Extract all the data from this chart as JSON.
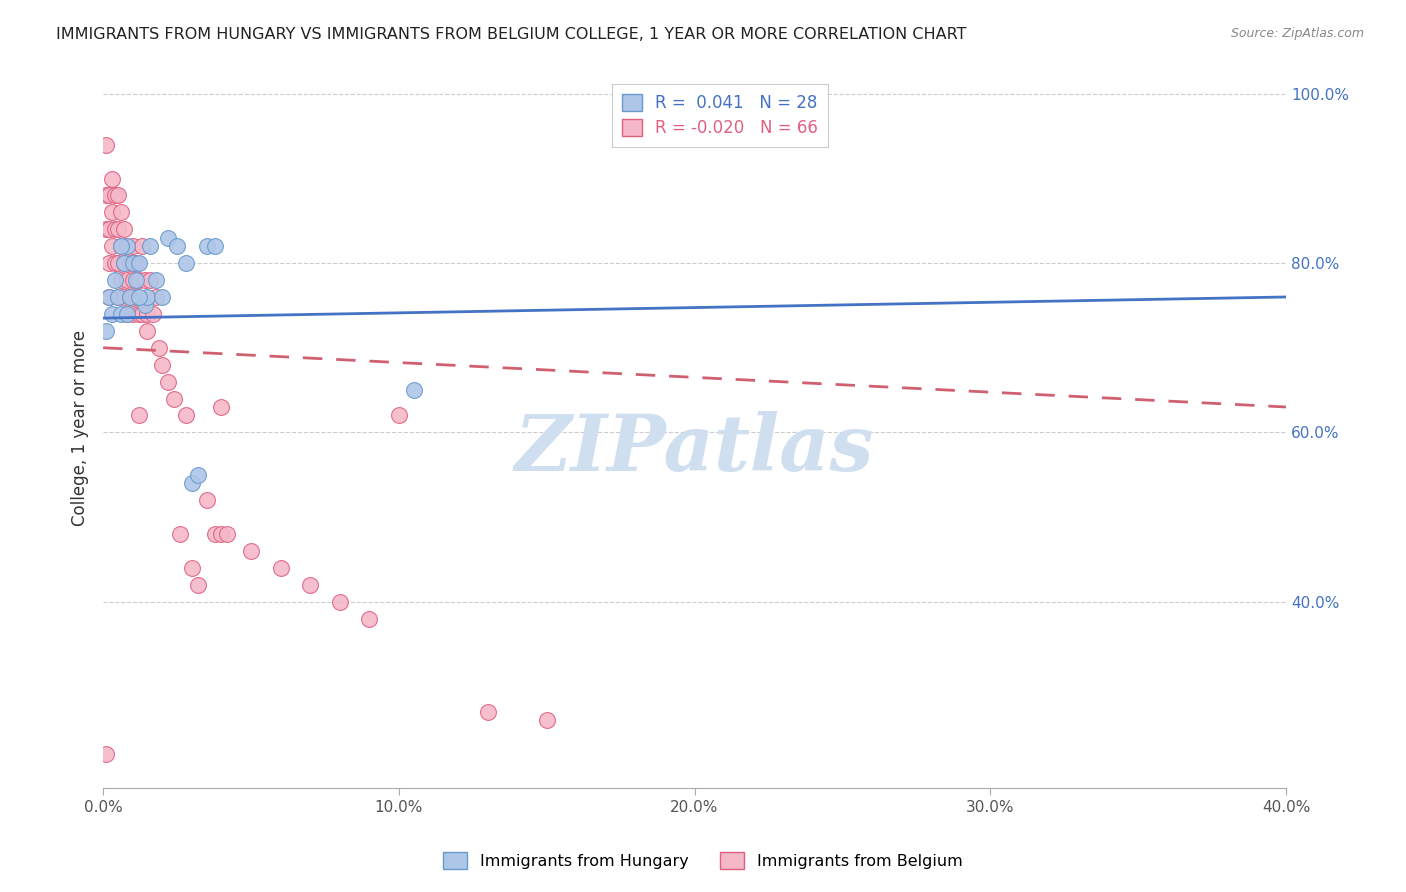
{
  "title": "IMMIGRANTS FROM HUNGARY VS IMMIGRANTS FROM BELGIUM COLLEGE, 1 YEAR OR MORE CORRELATION CHART",
  "source": "Source: ZipAtlas.com",
  "ylabel": "College, 1 year or more",
  "xlim": [
    0.0,
    0.4
  ],
  "ylim": [
    0.18,
    1.03
  ],
  "right_yticks": [
    1.0,
    0.8,
    0.6,
    0.4
  ],
  "right_ytick_labels": [
    "100.0%",
    "80.0%",
    "60.0%",
    "40.0%"
  ],
  "xticks": [
    0.0,
    0.1,
    0.2,
    0.3,
    0.4
  ],
  "xtick_labels": [
    "0.0%",
    "10.0%",
    "20.0%",
    "30.0%",
    "40.0%"
  ],
  "legend_r1": "R =  0.041   N = 28",
  "legend_r2": "R = -0.020   N = 66",
  "hungary_color": "#aec6e8",
  "hungary_edge": "#6699cc",
  "belgium_color": "#f4b8c8",
  "belgium_edge": "#e06080",
  "trend_hungary_color": "#4472c4",
  "trend_belgium_color": "#d06070",
  "watermark": "ZIPatlas",
  "watermark_color": "#d0dff0",
  "hungary_x": [
    0.001,
    0.002,
    0.003,
    0.004,
    0.005,
    0.006,
    0.007,
    0.008,
    0.009,
    0.01,
    0.011,
    0.012,
    0.014,
    0.015,
    0.016,
    0.018,
    0.02,
    0.022,
    0.025,
    0.028,
    0.03,
    0.032,
    0.035,
    0.012,
    0.008,
    0.006,
    0.105,
    0.038
  ],
  "hungary_y": [
    0.72,
    0.76,
    0.74,
    0.78,
    0.76,
    0.74,
    0.8,
    0.82,
    0.76,
    0.8,
    0.78,
    0.8,
    0.75,
    0.76,
    0.82,
    0.78,
    0.76,
    0.83,
    0.82,
    0.8,
    0.54,
    0.55,
    0.82,
    0.76,
    0.74,
    0.82,
    0.65,
    0.82
  ],
  "belgium_x": [
    0.001,
    0.001,
    0.001,
    0.001,
    0.002,
    0.002,
    0.002,
    0.002,
    0.003,
    0.003,
    0.003,
    0.004,
    0.004,
    0.004,
    0.005,
    0.005,
    0.005,
    0.005,
    0.006,
    0.006,
    0.006,
    0.007,
    0.007,
    0.007,
    0.008,
    0.008,
    0.008,
    0.009,
    0.009,
    0.01,
    0.01,
    0.01,
    0.011,
    0.011,
    0.012,
    0.012,
    0.013,
    0.013,
    0.014,
    0.015,
    0.015,
    0.016,
    0.017,
    0.018,
    0.019,
    0.02,
    0.022,
    0.024,
    0.026,
    0.028,
    0.03,
    0.032,
    0.035,
    0.038,
    0.04,
    0.042,
    0.05,
    0.06,
    0.07,
    0.08,
    0.09,
    0.1,
    0.13,
    0.15,
    0.04,
    0.012
  ],
  "belgium_y": [
    0.94,
    0.88,
    0.84,
    0.22,
    0.88,
    0.84,
    0.8,
    0.76,
    0.9,
    0.86,
    0.82,
    0.88,
    0.84,
    0.8,
    0.88,
    0.84,
    0.8,
    0.76,
    0.86,
    0.82,
    0.78,
    0.84,
    0.8,
    0.76,
    0.82,
    0.78,
    0.74,
    0.8,
    0.76,
    0.82,
    0.78,
    0.74,
    0.8,
    0.76,
    0.78,
    0.74,
    0.82,
    0.74,
    0.78,
    0.74,
    0.72,
    0.78,
    0.74,
    0.76,
    0.7,
    0.68,
    0.66,
    0.64,
    0.48,
    0.62,
    0.44,
    0.42,
    0.52,
    0.48,
    0.48,
    0.48,
    0.46,
    0.44,
    0.42,
    0.4,
    0.38,
    0.62,
    0.27,
    0.26,
    0.63,
    0.62
  ],
  "hungary_trend_x0": 0.0,
  "hungary_trend_x1": 0.4,
  "hungary_trend_y0": 0.735,
  "hungary_trend_y1": 0.76,
  "belgium_trend_x0": 0.0,
  "belgium_trend_x1": 0.4,
  "belgium_trend_y0": 0.7,
  "belgium_trend_y1": 0.63
}
